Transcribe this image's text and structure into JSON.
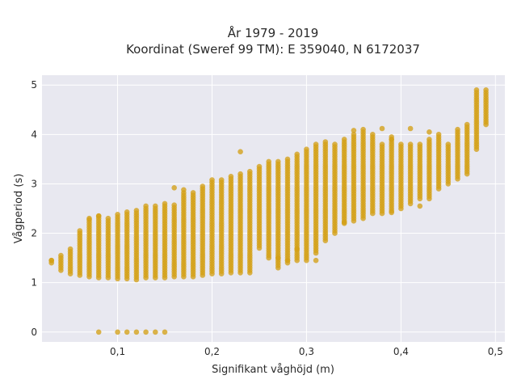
{
  "chart_data": {
    "type": "scatter",
    "title_line1": "År 1979 - 2019",
    "title_line2": "Koordinat (Sweref 99 TM): E 359040, N 6172037",
    "xlabel": "Signifikant våghöjd (m)",
    "ylabel": "Vågperiod (s)",
    "xlim": [
      0.02,
      0.51
    ],
    "ylim": [
      -0.2,
      5.2
    ],
    "x_ticks": [
      0.1,
      0.2,
      0.3,
      0.4,
      0.5
    ],
    "x_tick_labels": [
      "0,1",
      "0,2",
      "0,3",
      "0,4",
      "0,5"
    ],
    "y_ticks": [
      0,
      1,
      2,
      3,
      4,
      5
    ],
    "y_tick_labels": [
      "0",
      "1",
      "2",
      "3",
      "4",
      "5"
    ],
    "grid": true,
    "marker_color": "#D4A017",
    "background": "#E8E8F0",
    "bands": [
      [
        0.03,
        1.4,
        1.46
      ],
      [
        0.04,
        1.25,
        1.58
      ],
      [
        0.05,
        1.18,
        1.68
      ],
      [
        0.06,
        1.15,
        2.08
      ],
      [
        0.07,
        1.12,
        2.28
      ],
      [
        0.08,
        1.1,
        2.35
      ],
      [
        0.09,
        1.1,
        2.33
      ],
      [
        0.1,
        1.08,
        2.4
      ],
      [
        0.11,
        1.08,
        2.45
      ],
      [
        0.12,
        1.06,
        2.5
      ],
      [
        0.13,
        1.1,
        2.55
      ],
      [
        0.14,
        1.1,
        2.55
      ],
      [
        0.15,
        1.1,
        2.6
      ],
      [
        0.16,
        1.12,
        2.6
      ],
      [
        0.17,
        1.12,
        2.85
      ],
      [
        0.18,
        1.12,
        2.85
      ],
      [
        0.19,
        1.15,
        2.95
      ],
      [
        0.2,
        1.18,
        3.1
      ],
      [
        0.21,
        1.18,
        3.1
      ],
      [
        0.22,
        1.2,
        3.15
      ],
      [
        0.23,
        1.2,
        3.2
      ],
      [
        0.24,
        1.2,
        3.25
      ],
      [
        0.25,
        1.7,
        3.35
      ],
      [
        0.26,
        1.5,
        3.45
      ],
      [
        0.27,
        1.3,
        3.45
      ],
      [
        0.28,
        1.4,
        3.5
      ],
      [
        0.29,
        1.5,
        3.6
      ],
      [
        0.3,
        1.5,
        3.7
      ],
      [
        0.31,
        1.6,
        3.8
      ],
      [
        0.32,
        1.85,
        3.85
      ],
      [
        0.33,
        2.0,
        3.8
      ],
      [
        0.34,
        2.2,
        3.9
      ],
      [
        0.35,
        2.3,
        4.0
      ],
      [
        0.36,
        2.3,
        4.1
      ],
      [
        0.37,
        2.4,
        4.0
      ],
      [
        0.38,
        2.4,
        3.8
      ],
      [
        0.39,
        2.45,
        3.95
      ],
      [
        0.4,
        2.5,
        3.8
      ],
      [
        0.41,
        2.6,
        3.8
      ],
      [
        0.42,
        2.7,
        3.8
      ],
      [
        0.43,
        2.7,
        3.9
      ],
      [
        0.44,
        2.9,
        4.0
      ],
      [
        0.45,
        3.0,
        3.8
      ],
      [
        0.46,
        3.1,
        4.1
      ],
      [
        0.47,
        3.2,
        4.2
      ],
      [
        0.48,
        3.7,
        4.9
      ],
      [
        0.49,
        4.2,
        4.9
      ]
    ],
    "outliers": [
      [
        0.03,
        1.45
      ],
      [
        0.08,
        0
      ],
      [
        0.1,
        0
      ],
      [
        0.11,
        0
      ],
      [
        0.12,
        0
      ],
      [
        0.13,
        0
      ],
      [
        0.14,
        0
      ],
      [
        0.15,
        0
      ],
      [
        0.29,
        1.45
      ],
      [
        0.3,
        1.45
      ],
      [
        0.31,
        1.45
      ],
      [
        0.28,
        1.45
      ],
      [
        0.27,
        1.5
      ],
      [
        0.29,
        1.68
      ],
      [
        0.16,
        2.92
      ],
      [
        0.17,
        2.88
      ],
      [
        0.23,
        3.65
      ],
      [
        0.35,
        4.08
      ],
      [
        0.38,
        4.12
      ],
      [
        0.41,
        4.12
      ],
      [
        0.43,
        4.05
      ],
      [
        0.39,
        3.9
      ],
      [
        0.35,
        2.25
      ],
      [
        0.34,
        2.22
      ],
      [
        0.39,
        2.42
      ],
      [
        0.42,
        2.55
      ],
      [
        0.08,
        2.35
      ],
      [
        0.07,
        2.3
      ]
    ]
  }
}
